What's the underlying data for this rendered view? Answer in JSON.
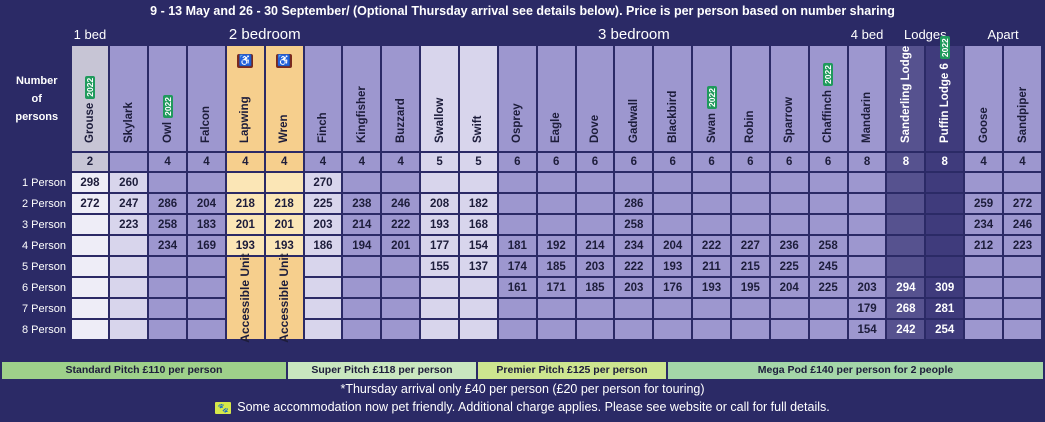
{
  "banner": "9 - 13 May and 26 - 30 September/ (Optional Thursday arrival see details below). Price is per person based on number sharing",
  "groups": {
    "one_bed": "1 bed",
    "two_bed": "2 bedroom",
    "three_bed": "3 bedroom",
    "four_bed": "4 bed",
    "lodges": "Lodges",
    "apart": "Apart"
  },
  "header_label": "Number of persons",
  "badge": "2022",
  "accessible_label": "Accessible Unit",
  "units": [
    {
      "name": "Grouse",
      "badge": true,
      "count": "2"
    },
    {
      "name": "Skylark",
      "badge": false,
      "count": ""
    },
    {
      "name": "Owl",
      "badge": true,
      "count": "4"
    },
    {
      "name": "Falcon",
      "badge": false,
      "count": "4"
    },
    {
      "name": "Lapwing",
      "badge": false,
      "count": "4",
      "wheelchair": true
    },
    {
      "name": "Wren",
      "badge": false,
      "count": "4",
      "wheelchair": true
    },
    {
      "name": "Finch",
      "badge": false,
      "count": "4"
    },
    {
      "name": "Kingfisher",
      "badge": false,
      "count": "4"
    },
    {
      "name": "Buzzard",
      "badge": false,
      "count": "4"
    },
    {
      "name": "Swallow",
      "badge": false,
      "count": "5"
    },
    {
      "name": "Swift",
      "badge": false,
      "count": "5"
    },
    {
      "name": "Osprey",
      "badge": false,
      "count": "6"
    },
    {
      "name": "Eagle",
      "badge": false,
      "count": "6"
    },
    {
      "name": "Dove",
      "badge": false,
      "count": "6"
    },
    {
      "name": "Gadwall",
      "badge": false,
      "count": "6"
    },
    {
      "name": "Blackbird",
      "badge": false,
      "count": "6"
    },
    {
      "name": "Swan",
      "badge": true,
      "count": "6"
    },
    {
      "name": "Robin",
      "badge": false,
      "count": "6"
    },
    {
      "name": "Sparrow",
      "badge": false,
      "count": "6"
    },
    {
      "name": "Chaffinch",
      "badge": true,
      "count": "6"
    },
    {
      "name": "Mandarin",
      "badge": false,
      "count": "8"
    },
    {
      "name": "Sanderling Lodge",
      "badge": false,
      "count": "8"
    },
    {
      "name": "Puffin Lodge 6",
      "badge": true,
      "count": "8"
    },
    {
      "name": "Goose",
      "badge": false,
      "count": "4"
    },
    {
      "name": "Sandpiper",
      "badge": false,
      "count": "4"
    }
  ],
  "rows": [
    {
      "label": "1 Person",
      "values": [
        "298",
        "260",
        "",
        "",
        "",
        "",
        "270",
        "",
        "",
        "",
        "",
        "",
        "",
        "",
        "",
        "",
        "",
        "",
        "",
        "",
        "",
        "",
        "",
        "",
        ""
      ]
    },
    {
      "label": "2 Person",
      "values": [
        "272",
        "247",
        "286",
        "204",
        "218",
        "218",
        "225",
        "238",
        "246",
        "208",
        "182",
        "",
        "",
        "",
        "286",
        "",
        "",
        "",
        "",
        "",
        "",
        "",
        "",
        "259",
        "272"
      ]
    },
    {
      "label": "3 Person",
      "values": [
        "",
        "223",
        "258",
        "183",
        "201",
        "201",
        "203",
        "214",
        "222",
        "193",
        "168",
        "",
        "",
        "",
        "258",
        "",
        "",
        "",
        "",
        "",
        "",
        "",
        "",
        "234",
        "246"
      ]
    },
    {
      "label": "4 Person",
      "values": [
        "",
        "",
        "234",
        "169",
        "193",
        "193",
        "186",
        "194",
        "201",
        "177",
        "154",
        "181",
        "192",
        "214",
        "234",
        "204",
        "222",
        "227",
        "236",
        "258",
        "",
        "",
        "",
        "212",
        "223"
      ]
    },
    {
      "label": "5 Person",
      "values": [
        "",
        "",
        "",
        "",
        "",
        "",
        "",
        "",
        "",
        "155",
        "137",
        "174",
        "185",
        "203",
        "222",
        "193",
        "211",
        "215",
        "225",
        "245",
        "",
        "",
        "",
        "",
        ""
      ]
    },
    {
      "label": "6 Person",
      "values": [
        "",
        "",
        "",
        "",
        "",
        "",
        "",
        "",
        "",
        "",
        "",
        "161",
        "171",
        "185",
        "203",
        "176",
        "193",
        "195",
        "204",
        "225",
        "203",
        "294",
        "309",
        "",
        ""
      ]
    },
    {
      "label": "7 Person",
      "values": [
        "",
        "",
        "",
        "",
        "",
        "",
        "",
        "",
        "",
        "",
        "",
        "",
        "",
        "",
        "",
        "",
        "",
        "",
        "",
        "",
        "179",
        "268",
        "281",
        "",
        ""
      ]
    },
    {
      "label": "8 Person",
      "values": [
        "",
        "",
        "",
        "",
        "",
        "",
        "",
        "",
        "",
        "",
        "",
        "",
        "",
        "",
        "",
        "",
        "",
        "",
        "",
        "",
        "154",
        "242",
        "254",
        "",
        ""
      ]
    }
  ],
  "pitches": {
    "standard": "Standard Pitch £110 per person",
    "super": "Super Pitch £118 per person",
    "premier": "Premier Pitch £125 per person",
    "mega": "Mega Pod £140 per person for 2 people"
  },
  "notes": {
    "thursday": "*Thursday arrival only £40 per person (£20 per person for touring)",
    "pet": "Some accommodation now pet friendly.  Additional charge applies.  Please see website or call for full details."
  },
  "colors": {
    "navy": "#2b2a66",
    "standard_pitch": "#9ed08a",
    "super_pitch": "#c9e7bf",
    "premier_pitch": "#cde58f",
    "mega_pod": "#a4d6a8",
    "badge_green": "#1f9a5c",
    "accessible_orange": "#f6cf8d"
  },
  "icons": {
    "wheelchair": "wheelchair-icon",
    "pet": "pet-friendly-icon"
  }
}
